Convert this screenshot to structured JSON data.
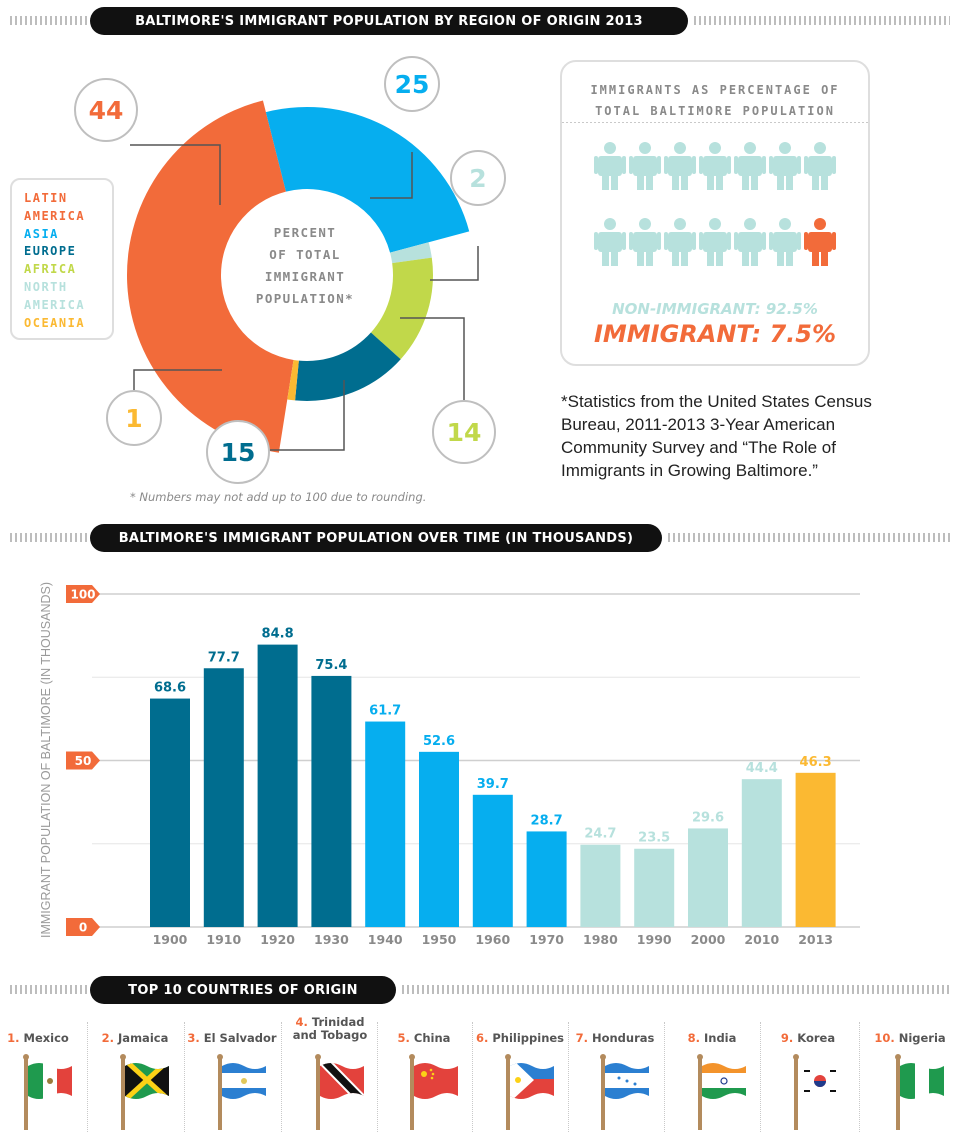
{
  "section1": {
    "title": "BALTIMORE'S IMMIGRANT POPULATION BY REGION OF ORIGIN 2013"
  },
  "section2": {
    "title": "BALTIMORE'S IMMIGRANT POPULATION OVER TIME (IN THOUSANDS)"
  },
  "section3": {
    "title": "TOP 10 COUNTRIES OF ORIGIN"
  },
  "legend": [
    {
      "label": "LATIN",
      "color": "#f26b3a"
    },
    {
      "label": "AMERICA",
      "color": "#f26b3a"
    },
    {
      "label": "ASIA",
      "color": "#06aeef"
    },
    {
      "label": "EUROPE",
      "color": "#006d8f"
    },
    {
      "label": "AFRICA",
      "color": "#c1d84a"
    },
    {
      "label": "NORTH",
      "color": "#b7e1dd"
    },
    {
      "label": "AMERICA",
      "color": "#b7e1dd"
    },
    {
      "label": "OCEANIA",
      "color": "#fbb932"
    }
  ],
  "donut_center_label": [
    "PERCENT",
    "OF TOTAL",
    "IMMIGRANT",
    "POPULATION*"
  ],
  "donut_note": "* Numbers may not add up to 100 due to rounding.",
  "immigrant_box": {
    "title_line1": "IMMIGRANTS AS PERCENTAGE OF",
    "title_line2": "TOTAL BALTIMORE POPULATION",
    "non_immigrant": "NON-IMMIGRANT: 92.5%",
    "immigrant": "IMMIGRANT: 7.5%",
    "non_color": "#b7e1dd",
    "imm_color": "#f26b3a"
  },
  "source_note": "*Statistics from the United States Census Bureau, 2011-2013 3-Year American Community Survey and “The Role of Immigrants in Growing Baltimore.”",
  "countries": [
    {
      "rank": "1.",
      "name": "Mexico"
    },
    {
      "rank": "2.",
      "name": "Jamaica"
    },
    {
      "rank": "3.",
      "name": "El Salvador"
    },
    {
      "rank": "4.",
      "name": "Trinidad and Tobago"
    },
    {
      "rank": "5.",
      "name": "China"
    },
    {
      "rank": "6.",
      "name": "Philippines"
    },
    {
      "rank": "7.",
      "name": "Honduras"
    },
    {
      "rank": "8.",
      "name": "India"
    },
    {
      "rank": "9.",
      "name": "Korea"
    },
    {
      "rank": "10.",
      "name": "Nigeria"
    }
  ],
  "chart_data": [
    {
      "type": "pie",
      "categories": [
        "Latin America",
        "Asia",
        "North America",
        "Africa",
        "Europe",
        "Oceania"
      ],
      "values": [
        44,
        25,
        2,
        14,
        15,
        1
      ],
      "colors": [
        "#f26b3a",
        "#06aeef",
        "#b7e1dd",
        "#c1d84a",
        "#006d8f",
        "#fbb932"
      ],
      "data_labels": [
        "44",
        "25",
        "2",
        "14",
        "15",
        "1"
      ]
    },
    {
      "type": "bar",
      "categories": [
        "1900",
        "1910",
        "1920",
        "1930",
        "1940",
        "1950",
        "1960",
        "1970",
        "1980",
        "1990",
        "2000",
        "2010",
        "2013"
      ],
      "values": [
        68.6,
        77.7,
        84.8,
        75.4,
        61.7,
        52.6,
        39.7,
        28.7,
        24.7,
        23.5,
        29.6,
        44.4,
        46.3
      ],
      "data_labels": [
        "68.6",
        "77.7",
        "84.8",
        "75.4",
        "61.7",
        "52.6",
        "39.7",
        "28.7",
        "24.7",
        "23.5",
        "29.6",
        "44.4",
        "46.3"
      ],
      "colors": [
        "#006d8f",
        "#006d8f",
        "#006d8f",
        "#006d8f",
        "#06aeef",
        "#06aeef",
        "#06aeef",
        "#06aeef",
        "#b7e1dd",
        "#b7e1dd",
        "#b7e1dd",
        "#b7e1dd",
        "#fbb932"
      ],
      "ylabel": "IMMIGRANT POPULATION OF BALTIMORE (IN THOUSANDS)",
      "ylim": [
        0,
        100
      ],
      "yticks": [
        "0",
        "50",
        "100"
      ],
      "grid": true
    }
  ]
}
